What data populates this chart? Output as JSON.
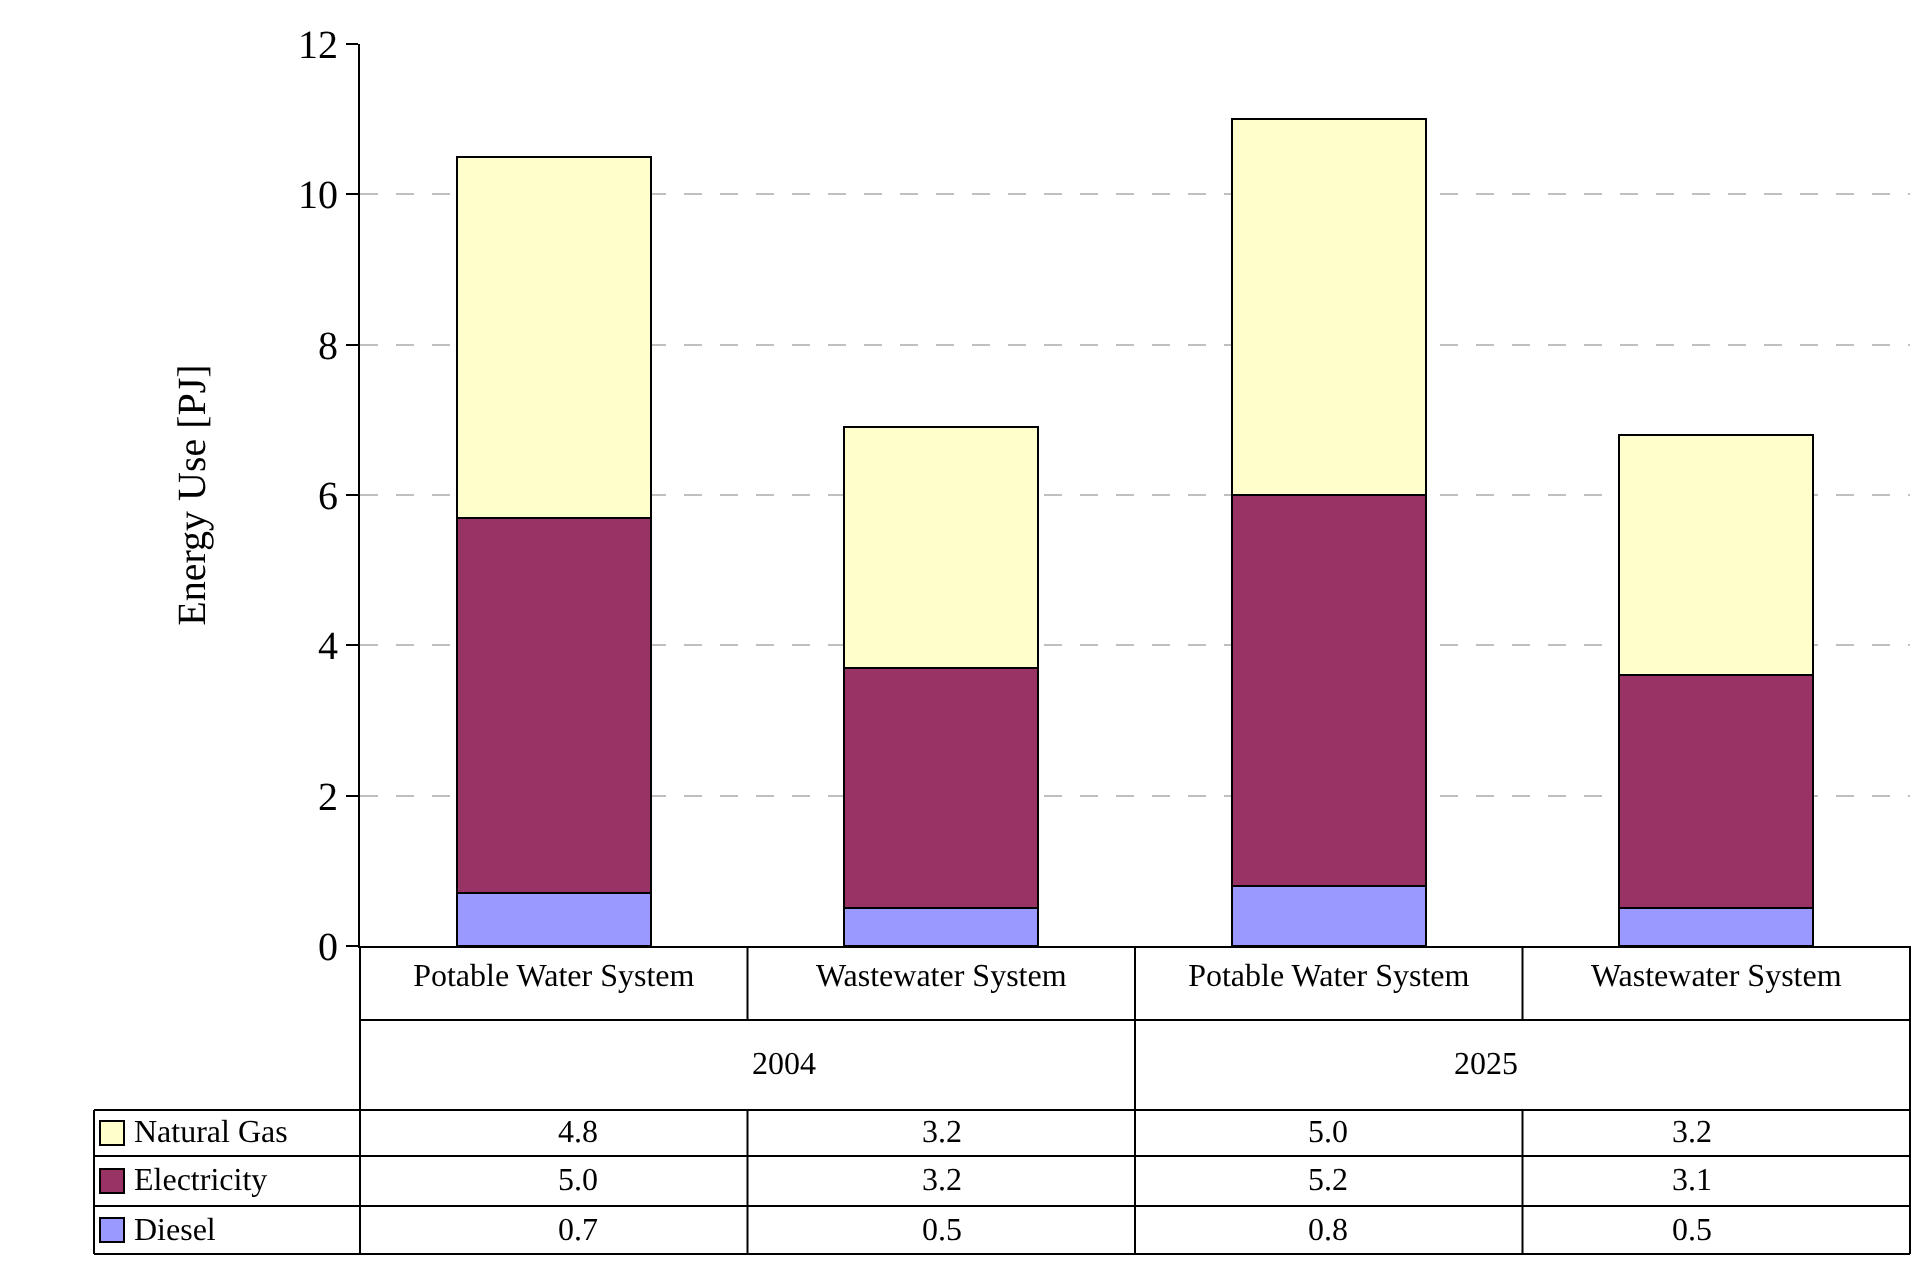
{
  "chart_data": {
    "type": "bar",
    "stacked": true,
    "ylabel": "Energy Use [PJ]",
    "categories": [
      "Potable Water System",
      "Wastewater System",
      "Potable Water System",
      "Wastewater System"
    ],
    "annotations": [
      "2004",
      "2025"
    ],
    "series": [
      {
        "name": "Diesel",
        "color": "#9999ff",
        "values": [
          0.7,
          0.5,
          0.8,
          0.5
        ],
        "value_labels": [
          "0.7",
          "0.5",
          "0.8",
          "0.5"
        ]
      },
      {
        "name": "Electricity",
        "color": "#993366",
        "values": [
          5.0,
          3.2,
          5.2,
          3.1
        ],
        "value_labels": [
          "5.0",
          "3.2",
          "5.2",
          "3.1"
        ]
      },
      {
        "name": "Natural Gas",
        "color": "#ffffcc",
        "values": [
          4.8,
          3.2,
          5.0,
          3.2
        ],
        "value_labels": [
          "4.8",
          "3.2",
          "5.0",
          "3.2"
        ]
      }
    ],
    "legend": "bottom left",
    "ylim": [
      0,
      12
    ],
    "yticks": [
      0,
      2,
      4,
      6,
      8,
      10,
      12
    ],
    "grid": "y"
  }
}
